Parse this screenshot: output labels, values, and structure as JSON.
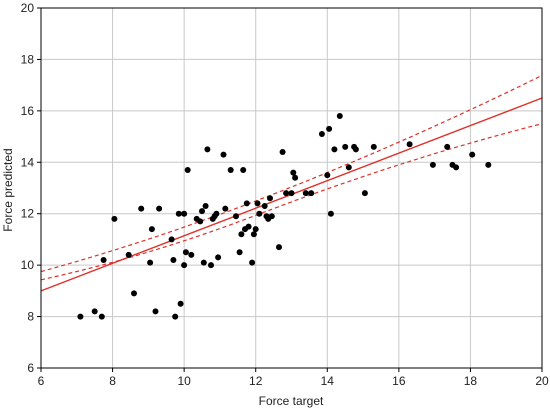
{
  "chart_data": {
    "type": "scatter",
    "xlabel": "Force target",
    "ylabel": "Force predicted",
    "xlim": [
      6,
      20
    ],
    "ylim": [
      6,
      20
    ],
    "xticks": [
      6,
      8,
      10,
      12,
      14,
      16,
      18,
      20
    ],
    "yticks": [
      6,
      8,
      10,
      12,
      14,
      16,
      18,
      20
    ],
    "grid": true,
    "legend": "none",
    "colors": {
      "points": "#000000",
      "fit": "#e0302a",
      "grid": "#c8c8c8",
      "axis": "#000000"
    },
    "points": {
      "x": [
        7.1,
        7.5,
        7.7,
        7.75,
        8.05,
        8.45,
        8.6,
        8.8,
        9.05,
        9.1,
        9.2,
        9.3,
        9.65,
        9.7,
        9.75,
        9.85,
        9.9,
        10.0,
        10.0,
        10.05,
        10.1,
        10.2,
        10.35,
        10.45,
        10.5,
        10.55,
        10.6,
        10.65,
        10.75,
        10.8,
        10.85,
        10.9,
        10.95,
        11.1,
        11.15,
        11.3,
        11.45,
        11.55,
        11.6,
        11.65,
        11.7,
        11.75,
        11.8,
        11.9,
        11.95,
        12.0,
        12.05,
        12.1,
        12.25,
        12.3,
        12.35,
        12.4,
        12.45,
        12.65,
        12.75,
        12.85,
        13.0,
        13.05,
        13.1,
        13.4,
        13.55,
        13.85,
        14.0,
        14.05,
        14.1,
        14.2,
        14.35,
        14.5,
        14.6,
        14.75,
        14.8,
        15.05,
        15.3,
        16.3,
        16.95,
        17.35,
        17.5,
        17.6,
        18.05,
        18.5
      ],
      "y": [
        8.0,
        8.2,
        8.0,
        10.2,
        11.8,
        10.4,
        8.9,
        12.2,
        10.1,
        11.4,
        8.2,
        12.2,
        11.0,
        10.2,
        8.0,
        12.0,
        8.5,
        10.0,
        12.0,
        10.5,
        13.7,
        10.4,
        11.8,
        11.7,
        12.1,
        10.1,
        12.3,
        14.5,
        10.0,
        11.8,
        11.9,
        12.0,
        10.3,
        14.3,
        12.2,
        13.7,
        11.9,
        10.5,
        11.2,
        13.7,
        11.4,
        12.4,
        11.5,
        10.1,
        11.2,
        11.4,
        12.4,
        12.0,
        12.3,
        11.9,
        11.8,
        12.6,
        11.9,
        10.7,
        14.4,
        12.8,
        12.8,
        13.6,
        13.4,
        12.8,
        12.8,
        15.1,
        13.5,
        15.3,
        12.0,
        14.5,
        15.8,
        14.6,
        13.8,
        14.6,
        14.5,
        12.8,
        14.6,
        14.7,
        13.9,
        14.6,
        13.9,
        13.8,
        14.3,
        13.9
      ]
    },
    "fit": {
      "slope": 0.5357,
      "intercept": 5.786,
      "ci": {
        "x": [
          6,
          20
        ],
        "lower": [
          9.43,
          15.5
        ],
        "upper": [
          9.75,
          17.38
        ]
      }
    }
  }
}
